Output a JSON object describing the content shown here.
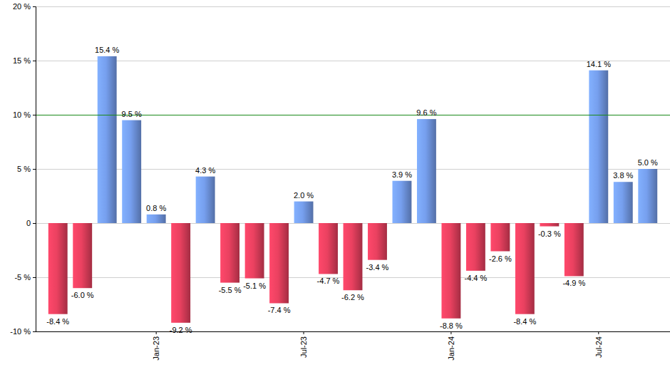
{
  "chart_data": {
    "type": "bar",
    "categories": [
      null,
      null,
      null,
      null,
      "Jan-23",
      null,
      null,
      null,
      null,
      null,
      "Jul-23",
      null,
      null,
      null,
      null,
      null,
      "Jan-24",
      null,
      null,
      null,
      null,
      null,
      "Jul-24",
      null,
      null
    ],
    "values": [
      -8.4,
      -6.0,
      15.4,
      9.5,
      0.8,
      -9.2,
      4.3,
      -5.5,
      -5.1,
      -7.4,
      2.0,
      -4.7,
      -6.2,
      -3.4,
      3.9,
      9.6,
      -8.8,
      -4.4,
      -2.6,
      -8.4,
      -0.3,
      -4.9,
      14.1,
      3.8,
      5.0
    ],
    "value_labels": [
      "-8.4 %",
      "-6.0 %",
      "15.4 %",
      "9.5 %",
      "0.8 %",
      "-9.2 %",
      "4.3 %",
      "-5.5 %",
      "-5.1 %",
      "-7.4 %",
      "2.0 %",
      "-4.7 %",
      "-6.2 %",
      "-3.4 %",
      "3.9 %",
      "9.6 %",
      "-8.8 %",
      "-4.4 %",
      "-2.6 %",
      "-8.4 %",
      "-0.3 %",
      "-4.9 %",
      "14.1 %",
      "3.8 %",
      "5.0 %"
    ],
    "colors": [
      "#d23a56",
      "#d23a56",
      "#6a8fd6",
      "#6a8fd6",
      "#6a8fd6",
      "#d23a56",
      "#6a8fd6",
      "#d23a56",
      "#d23a56",
      "#d23a56",
      "#6a8fd6",
      "#d23a56",
      "#d23a56",
      "#d23a56",
      "#6a8fd6",
      "#6a8fd6",
      "#d23a56",
      "#d23a56",
      "#d23a56",
      "#d23a56",
      "#d23a56",
      "#d23a56",
      "#6a8fd6",
      "#6a8fd6",
      "#6a8fd6"
    ],
    "ylim": [
      -10,
      20
    ],
    "yticks": [
      {
        "value": -10,
        "label": "-10 %"
      },
      {
        "value": -5,
        "label": "-5 %"
      },
      {
        "value": 0,
        "label": "0"
      },
      {
        "value": 5,
        "label": "5 %"
      },
      {
        "value": 10,
        "label": "10 %"
      },
      {
        "value": 15,
        "label": "15 %"
      },
      {
        "value": 20,
        "label": "20 %"
      }
    ],
    "reference_line": 10,
    "grid": true,
    "data_labels": true
  }
}
